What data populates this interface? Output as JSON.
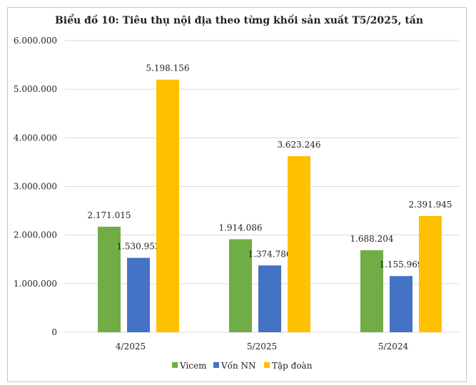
{
  "chart_data": {
    "type": "bar",
    "title": "Biểu đồ 10: Tiêu thụ nội địa theo từng khối sản xuất T5/2025, tấn",
    "categories": [
      "4/2025",
      "5/2025",
      "5/2024"
    ],
    "series": [
      {
        "name": "Vicem",
        "color": "#70ad47",
        "values": [
          2171015,
          1914086,
          1688204
        ],
        "labels": [
          "2.171.015",
          "1.914.086",
          "1.688.204"
        ]
      },
      {
        "name": "Vốn NN",
        "color": "#4472c4",
        "values": [
          1530952,
          1374786,
          1155969
        ],
        "labels": [
          "1.530.952",
          "1.374.786",
          "1.155.969"
        ]
      },
      {
        "name": "Tập đoàn",
        "color": "#ffc000",
        "values": [
          5198156,
          3623246,
          2391945
        ],
        "labels": [
          "5.198.156",
          "3.623.246",
          "2.391.945"
        ]
      }
    ],
    "ylim": [
      0,
      6000000
    ],
    "yticks": [
      0,
      1000000,
      2000000,
      3000000,
      4000000,
      5000000,
      6000000
    ],
    "ytick_labels": [
      "0",
      "1.000.000",
      "2.000.000",
      "3.000.000",
      "4.000.000",
      "5.000.000",
      "6.000.000"
    ],
    "xlabel": "",
    "ylabel": "",
    "grid": true,
    "legend": "bottom"
  }
}
